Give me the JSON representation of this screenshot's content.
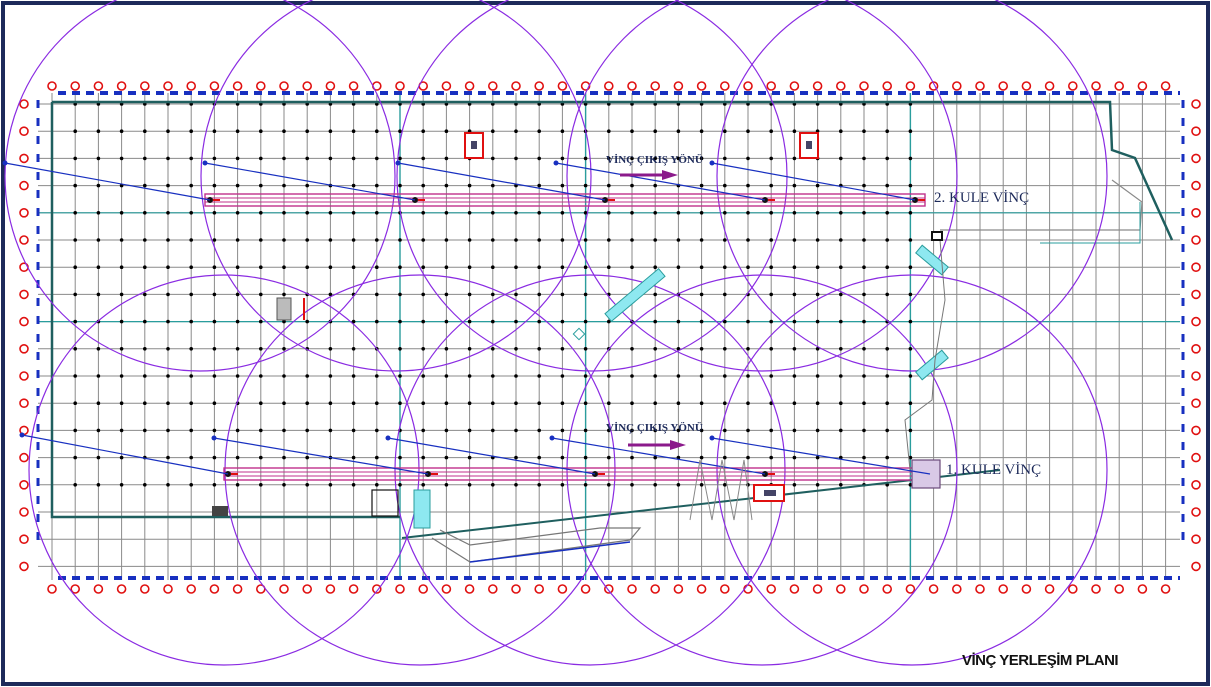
{
  "plan": {
    "title": "VİNÇ YERLEŞİM PLANI"
  },
  "cranes": [
    {
      "label": "1. KULE VİNÇ",
      "direction_label": "VİNÇ ÇIKIŞ YÖNÜ"
    },
    {
      "label": "2. KULE VİNÇ",
      "direction_label": "VİNÇ ÇIKIŞ YÖNÜ"
    }
  ],
  "colors": {
    "frame": "#1d2a5a",
    "grid": "#8a8a8a",
    "wall": "#1f5f5f",
    "teal": "#2a9d9d",
    "circle": "#8a2be2",
    "rail": "#c0308c",
    "arrow": "#1830c0",
    "marker": "#e01010",
    "dashes": "#1830c0",
    "dot": "#000000"
  },
  "icons": [
    "north-arrow-icon"
  ]
}
